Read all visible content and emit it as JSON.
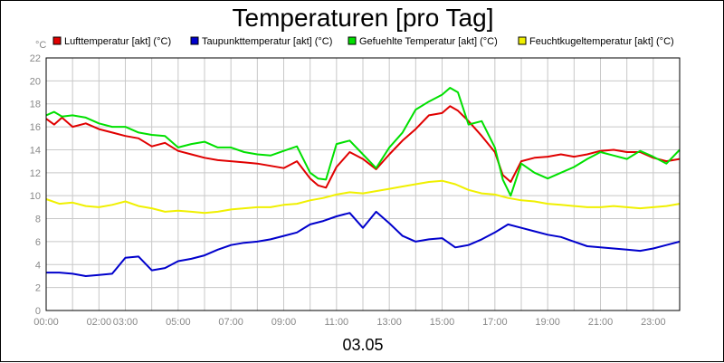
{
  "chart_data": {
    "type": "line",
    "title": "Temperaturen [pro Tag]",
    "unit_label": "°C",
    "date_label": "03.05",
    "ylim": [
      0,
      22
    ],
    "yticks": [
      0,
      2,
      4,
      6,
      8,
      10,
      12,
      14,
      16,
      18,
      20,
      22
    ],
    "xlim_hours": [
      0,
      24
    ],
    "xticks": [
      {
        "h": 0,
        "label": "00:00"
      },
      {
        "h": 2,
        "label": "02:00"
      },
      {
        "h": 3,
        "label": "03:00"
      },
      {
        "h": 5,
        "label": "05:00"
      },
      {
        "h": 7,
        "label": "07:00"
      },
      {
        "h": 9,
        "label": "09:00"
      },
      {
        "h": 11,
        "label": "11:00"
      },
      {
        "h": 13,
        "label": "13:00"
      },
      {
        "h": 15,
        "label": "15:00"
      },
      {
        "h": 17,
        "label": "17:00"
      },
      {
        "h": 19,
        "label": "19:00"
      },
      {
        "h": 21,
        "label": "21:00"
      },
      {
        "h": 23,
        "label": "23:00"
      }
    ],
    "grid": true,
    "legend_position": "top",
    "series": [
      {
        "name": "Lufttemperatur [akt] (°C)",
        "color": "#e00000",
        "x": [
          0,
          0.3,
          0.6,
          1,
          1.5,
          2,
          2.5,
          3,
          3.5,
          4,
          4.5,
          5,
          5.5,
          6,
          6.5,
          7,
          7.5,
          8,
          8.5,
          9,
          9.5,
          10,
          10.3,
          10.6,
          11,
          11.5,
          12,
          12.5,
          13,
          13.5,
          14,
          14.5,
          15,
          15.3,
          15.6,
          16,
          16.5,
          17,
          17.3,
          17.6,
          18,
          18.5,
          19,
          19.5,
          20,
          20.5,
          21,
          21.5,
          22,
          22.5,
          23,
          23.5,
          24
        ],
        "values": [
          16.7,
          16.2,
          16.8,
          16.0,
          16.3,
          15.8,
          15.5,
          15.2,
          15.0,
          14.3,
          14.6,
          13.9,
          13.6,
          13.3,
          13.1,
          13.0,
          12.9,
          12.8,
          12.6,
          12.4,
          13.0,
          11.5,
          10.9,
          10.7,
          12.5,
          13.8,
          13.2,
          12.3,
          13.6,
          14.8,
          15.8,
          17.0,
          17.2,
          17.8,
          17.4,
          16.5,
          15.2,
          13.8,
          11.8,
          11.2,
          13.0,
          13.3,
          13.4,
          13.6,
          13.4,
          13.6,
          13.9,
          14.0,
          13.8,
          13.8,
          13.3,
          13.0,
          13.2
        ]
      },
      {
        "name": "Taupunkttemperatur [akt] (°C)",
        "color": "#0000cc",
        "x": [
          0,
          0.5,
          1,
          1.5,
          2,
          2.5,
          3,
          3.5,
          4,
          4.5,
          5,
          5.5,
          6,
          6.5,
          7,
          7.5,
          8,
          8.5,
          9,
          9.5,
          10,
          10.5,
          11,
          11.5,
          12,
          12.5,
          13,
          13.5,
          14,
          14.5,
          15,
          15.5,
          16,
          16.5,
          17,
          17.5,
          18,
          18.5,
          19,
          19.5,
          20,
          20.5,
          21,
          21.5,
          22,
          22.5,
          23,
          23.5,
          24
        ],
        "values": [
          3.3,
          3.3,
          3.2,
          3.0,
          3.1,
          3.2,
          4.6,
          4.7,
          3.5,
          3.7,
          4.3,
          4.5,
          4.8,
          5.3,
          5.7,
          5.9,
          6.0,
          6.2,
          6.5,
          6.8,
          7.5,
          7.8,
          8.2,
          8.5,
          7.2,
          8.6,
          7.6,
          6.5,
          6.0,
          6.2,
          6.3,
          5.5,
          5.7,
          6.2,
          6.8,
          7.5,
          7.2,
          6.9,
          6.6,
          6.4,
          6.0,
          5.6,
          5.5,
          5.4,
          5.3,
          5.2,
          5.4,
          5.7,
          6.0
        ]
      },
      {
        "name": "Gefuehlte Temperatur [akt] (°C)",
        "color": "#00e000",
        "x": [
          0,
          0.3,
          0.6,
          1,
          1.5,
          2,
          2.5,
          3,
          3.5,
          4,
          4.5,
          5,
          5.5,
          6,
          6.5,
          7,
          7.5,
          8,
          8.5,
          9,
          9.5,
          10,
          10.3,
          10.6,
          11,
          11.5,
          12,
          12.5,
          13,
          13.5,
          14,
          14.5,
          15,
          15.3,
          15.6,
          16,
          16.5,
          17,
          17.3,
          17.6,
          18,
          18.5,
          19,
          19.5,
          20,
          20.5,
          21,
          21.5,
          22,
          22.5,
          23,
          23.5,
          24
        ],
        "values": [
          17.0,
          17.3,
          16.9,
          17.0,
          16.8,
          16.3,
          16.0,
          16.0,
          15.5,
          15.3,
          15.2,
          14.2,
          14.5,
          14.7,
          14.2,
          14.2,
          13.8,
          13.6,
          13.5,
          13.9,
          14.3,
          12.0,
          11.5,
          11.4,
          14.5,
          14.8,
          13.6,
          12.4,
          14.2,
          15.5,
          17.5,
          18.2,
          18.8,
          19.4,
          19.0,
          16.2,
          16.5,
          14.2,
          11.4,
          10.0,
          12.8,
          12.0,
          11.5,
          12.0,
          12.5,
          13.2,
          13.8,
          13.5,
          13.2,
          13.9,
          13.4,
          12.8,
          14.0
        ]
      },
      {
        "name": "Feuchtkugeltemperatur [akt] (°C)",
        "color": "#f0f000",
        "x": [
          0,
          0.5,
          1,
          1.5,
          2,
          2.5,
          3,
          3.5,
          4,
          4.5,
          5,
          5.5,
          6,
          6.5,
          7,
          7.5,
          8,
          8.5,
          9,
          9.5,
          10,
          10.5,
          11,
          11.5,
          12,
          12.5,
          13,
          13.5,
          14,
          14.5,
          15,
          15.5,
          16,
          16.5,
          17,
          17.5,
          18,
          18.5,
          19,
          19.5,
          20,
          20.5,
          21,
          21.5,
          22,
          22.5,
          23,
          23.5,
          24
        ],
        "values": [
          9.7,
          9.3,
          9.4,
          9.1,
          9.0,
          9.2,
          9.5,
          9.1,
          8.9,
          8.6,
          8.7,
          8.6,
          8.5,
          8.6,
          8.8,
          8.9,
          9.0,
          9.0,
          9.2,
          9.3,
          9.6,
          9.8,
          10.1,
          10.3,
          10.2,
          10.4,
          10.6,
          10.8,
          11.0,
          11.2,
          11.3,
          11.0,
          10.5,
          10.2,
          10.1,
          9.8,
          9.6,
          9.5,
          9.3,
          9.2,
          9.1,
          9.0,
          9.0,
          9.1,
          9.0,
          8.9,
          9.0,
          9.1,
          9.3
        ]
      }
    ]
  }
}
